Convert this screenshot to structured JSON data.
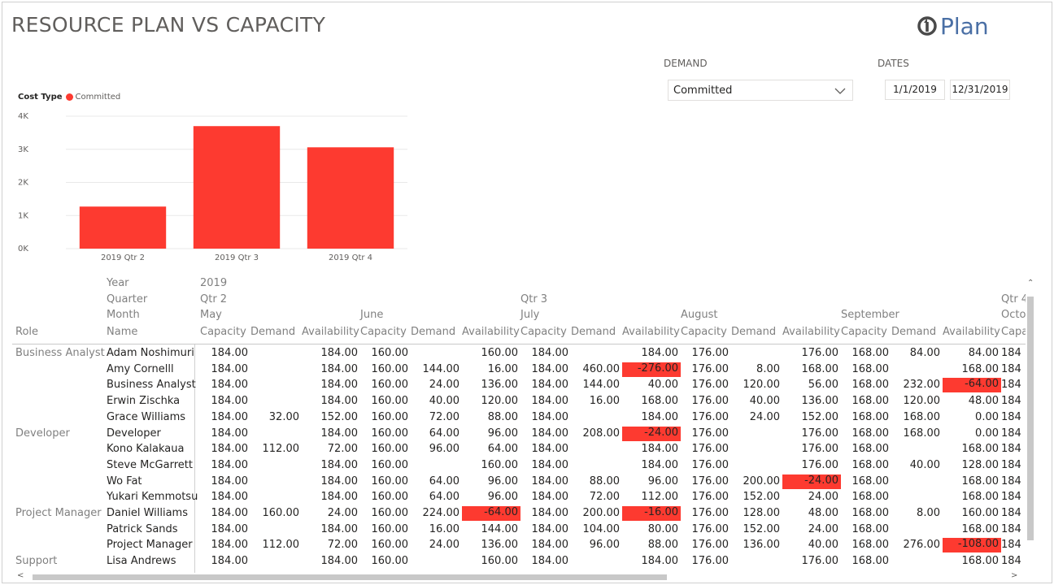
{
  "report": {
    "title": "RESOURCE PLAN VS CAPACITY",
    "logo_text": "Plan"
  },
  "slicers": {
    "demand_label": "DEMAND",
    "demand_value": "Committed",
    "dates_label": "DATES",
    "date_start": "1/1/2019",
    "date_end": "12/31/2019"
  },
  "legend": {
    "title": "Cost Type",
    "item": "Committed",
    "color": "#fd3a30"
  },
  "chart_data": {
    "type": "bar",
    "categories": [
      "2019 Qtr 2",
      "2019 Qtr 3",
      "2019 Qtr 4"
    ],
    "series": [
      {
        "name": "Committed",
        "values": [
          1270,
          3700,
          3060
        ]
      }
    ],
    "yticks": [
      "0K",
      "1K",
      "2K",
      "3K",
      "4K"
    ],
    "ylim": [
      0,
      4000
    ],
    "grid": true,
    "color": "#fd3a30"
  },
  "matrix": {
    "header_labels": {
      "year": "Year",
      "quarter": "Quarter",
      "month": "Month",
      "role": "Role",
      "name": "Name"
    },
    "year": "2019",
    "quarters": [
      "Qtr 2",
      "Qtr 3",
      "Qtr 4"
    ],
    "months": [
      "May",
      "June",
      "July",
      "August",
      "September",
      "Octol"
    ],
    "measures": [
      "Capacity",
      "Demand",
      "Availability"
    ],
    "last_measure": "Capa",
    "rows": [
      {
        "role": "Business Analyst",
        "name": "Adam Noshimuri",
        "v": [
          "184.00",
          "",
          "184.00",
          "160.00",
          "",
          "160.00",
          "184.00",
          "",
          "184.00",
          "176.00",
          "",
          "176.00",
          "168.00",
          "84.00",
          "84.00",
          "184"
        ]
      },
      {
        "role": "",
        "name": "Amy Cornelll",
        "v": [
          "184.00",
          "",
          "184.00",
          "160.00",
          "144.00",
          "16.00",
          "184.00",
          "460.00",
          "-276.00",
          "176.00",
          "8.00",
          "168.00",
          "168.00",
          "",
          "168.00",
          "184"
        ]
      },
      {
        "role": "",
        "name": "Business Analyst",
        "v": [
          "184.00",
          "",
          "184.00",
          "160.00",
          "24.00",
          "136.00",
          "184.00",
          "144.00",
          "40.00",
          "176.00",
          "120.00",
          "56.00",
          "168.00",
          "232.00",
          "-64.00",
          "184"
        ]
      },
      {
        "role": "",
        "name": "Erwin Zischka",
        "v": [
          "184.00",
          "",
          "184.00",
          "160.00",
          "40.00",
          "120.00",
          "184.00",
          "16.00",
          "168.00",
          "176.00",
          "40.00",
          "136.00",
          "168.00",
          "120.00",
          "48.00",
          "184"
        ]
      },
      {
        "role": "",
        "name": "Grace Williams",
        "v": [
          "184.00",
          "32.00",
          "152.00",
          "160.00",
          "72.00",
          "88.00",
          "184.00",
          "",
          "184.00",
          "176.00",
          "24.00",
          "152.00",
          "168.00",
          "168.00",
          "0.00",
          "184"
        ]
      },
      {
        "role": "Developer",
        "name": "Developer",
        "v": [
          "184.00",
          "",
          "184.00",
          "160.00",
          "64.00",
          "96.00",
          "184.00",
          "208.00",
          "-24.00",
          "176.00",
          "",
          "176.00",
          "168.00",
          "168.00",
          "0.00",
          "184"
        ]
      },
      {
        "role": "",
        "name": "Kono Kalakaua",
        "v": [
          "184.00",
          "112.00",
          "72.00",
          "160.00",
          "96.00",
          "64.00",
          "184.00",
          "",
          "184.00",
          "176.00",
          "",
          "176.00",
          "168.00",
          "",
          "168.00",
          "184"
        ]
      },
      {
        "role": "",
        "name": "Steve McGarrett",
        "v": [
          "184.00",
          "",
          "184.00",
          "160.00",
          "",
          "160.00",
          "184.00",
          "",
          "184.00",
          "176.00",
          "",
          "176.00",
          "168.00",
          "40.00",
          "128.00",
          "184"
        ]
      },
      {
        "role": "",
        "name": "Wo Fat",
        "v": [
          "184.00",
          "",
          "184.00",
          "160.00",
          "64.00",
          "96.00",
          "184.00",
          "88.00",
          "96.00",
          "176.00",
          "200.00",
          "-24.00",
          "168.00",
          "",
          "168.00",
          "184"
        ]
      },
      {
        "role": "",
        "name": "Yukari Kemmotsu",
        "v": [
          "184.00",
          "",
          "184.00",
          "160.00",
          "64.00",
          "96.00",
          "184.00",
          "72.00",
          "112.00",
          "176.00",
          "152.00",
          "24.00",
          "168.00",
          "",
          "168.00",
          "184"
        ]
      },
      {
        "role": "Project Manager",
        "name": "Daniel Williams",
        "v": [
          "184.00",
          "160.00",
          "24.00",
          "160.00",
          "224.00",
          "-64.00",
          "184.00",
          "200.00",
          "-16.00",
          "176.00",
          "128.00",
          "48.00",
          "168.00",
          "8.00",
          "160.00",
          "184"
        ]
      },
      {
        "role": "",
        "name": "Patrick Sands",
        "v": [
          "184.00",
          "",
          "184.00",
          "160.00",
          "16.00",
          "144.00",
          "184.00",
          "104.00",
          "80.00",
          "176.00",
          "152.00",
          "24.00",
          "168.00",
          "",
          "168.00",
          "184"
        ]
      },
      {
        "role": "",
        "name": "Project Manager",
        "v": [
          "184.00",
          "112.00",
          "72.00",
          "160.00",
          "24.00",
          "136.00",
          "184.00",
          "96.00",
          "88.00",
          "176.00",
          "136.00",
          "40.00",
          "168.00",
          "276.00",
          "-108.00",
          "184"
        ]
      },
      {
        "role": "Support",
        "name": "Lisa Andrews",
        "v": [
          "184.00",
          "",
          "184.00",
          "160.00",
          "",
          "160.00",
          "184.00",
          "",
          "184.00",
          "176.00",
          "",
          "176.00",
          "168.00",
          "",
          "168.00",
          "184"
        ]
      }
    ]
  }
}
